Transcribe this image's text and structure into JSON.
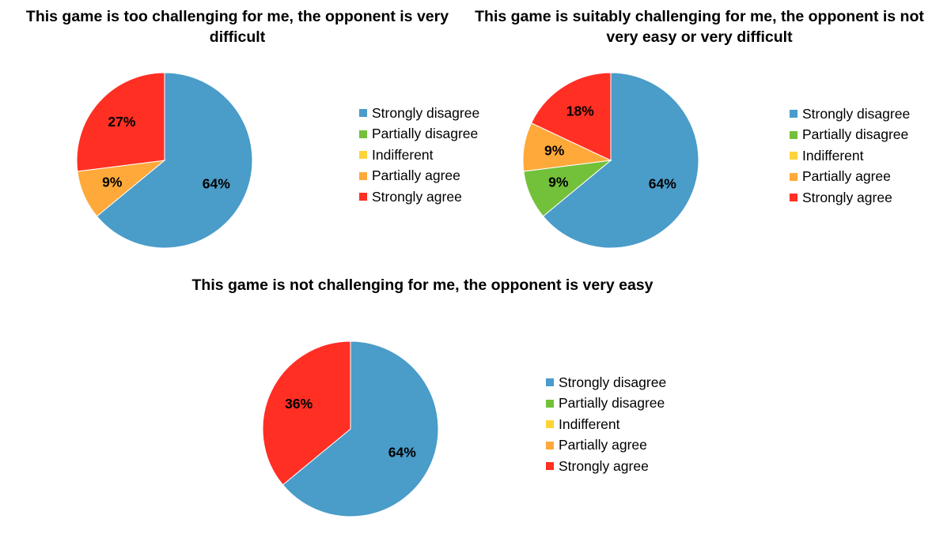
{
  "colors": {
    "strongly_disagree": "#4A9CC9",
    "partially_disagree": "#73C13A",
    "indifferent": "#FFD43B",
    "partially_agree": "#FFA93A",
    "strongly_agree": "#FF2F24",
    "slice_border": "#ffffff"
  },
  "chart_data": [
    {
      "type": "pie",
      "title": "This game is too challenging for me, the opponent is very difficult",
      "categories": [
        "Strongly disagree",
        "Partially disagree",
        "Indifferent",
        "Partially agree",
        "Strongly agree"
      ],
      "values": [
        64,
        0,
        0,
        9,
        27
      ],
      "data_labels": [
        "64%",
        "",
        "",
        "9%",
        "27%"
      ],
      "legend_position": "right"
    },
    {
      "type": "pie",
      "title": "This game is suitably challenging for me, the opponent is not very easy or very difficult",
      "categories": [
        "Strongly disagree",
        "Partially disagree",
        "Indifferent",
        "Partially agree",
        "Strongly agree"
      ],
      "values": [
        64,
        9,
        0,
        9,
        18
      ],
      "data_labels": [
        "64%",
        "9%",
        "",
        "9%",
        "18%"
      ],
      "legend_position": "right"
    },
    {
      "type": "pie",
      "title": "This game is not challenging for me, the opponent is very easy",
      "categories": [
        "Strongly disagree",
        "Partially disagree",
        "Indifferent",
        "Partially agree",
        "Strongly agree"
      ],
      "values": [
        64,
        0,
        0,
        0,
        36
      ],
      "data_labels": [
        "64%",
        "",
        "",
        "",
        "36%"
      ],
      "legend_position": "right"
    }
  ]
}
